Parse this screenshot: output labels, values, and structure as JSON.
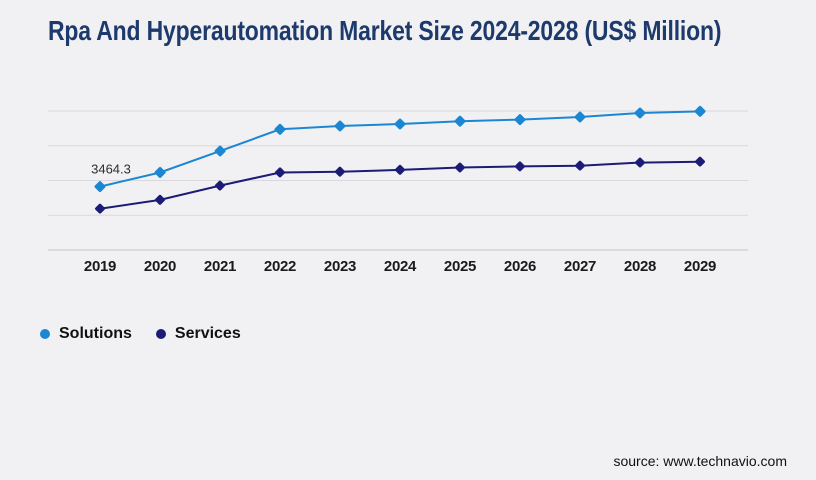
{
  "title": "Rpa And Hyperautomation Market Size 2024-2028 (US$ Million)",
  "source": "source: www.technavio.com",
  "colors": {
    "background": "#f1f1f4",
    "title": "#1d3a6c",
    "grid": "#d9d9dd",
    "axis": "#c4c4c9",
    "solutions": "#1b87d3",
    "services": "#1c1b76"
  },
  "legend": [
    {
      "label": "Solutions",
      "color": "#1b87d3"
    },
    {
      "label": "Services",
      "color": "#1c1b76"
    }
  ],
  "chart_data": {
    "type": "line",
    "title": "Rpa And Hyperautomation Market Size 2024-2028 (US$ Million)",
    "x": [
      2019,
      2020,
      2021,
      2022,
      2023,
      2024,
      2025,
      2026,
      2027,
      2028,
      2029
    ],
    "series": [
      {
        "name": "Solutions",
        "color": "#1b87d3",
        "values": [
          3464.3,
          4240,
          5410,
          6600,
          6780,
          6890,
          7040,
          7130,
          7270,
          7490,
          7580
        ]
      },
      {
        "name": "Services",
        "color": "#1c1b76",
        "values": [
          2260,
          2740,
          3520,
          4240,
          4280,
          4380,
          4510,
          4570,
          4610,
          4780,
          4830
        ]
      }
    ],
    "ylim": [
      0,
      7600
    ],
    "grid": true,
    "y_axis_labels": false,
    "marker": "diamond",
    "legend_position": "bottom-left",
    "annotation": {
      "series": "Solutions",
      "x": 2019,
      "text": "3464.3"
    }
  }
}
